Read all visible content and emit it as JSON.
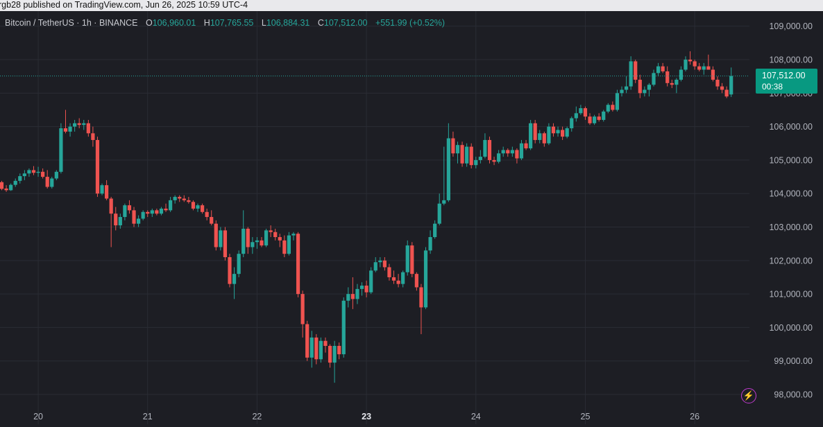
{
  "header": {
    "published_text": "rgb28 published on TradingView.com, Jun 26, 2025 10:59 UTC-4"
  },
  "legend": {
    "symbol_text": "Bitcoin / TetherUS · 1h · BINANCE",
    "open_key": "O",
    "open_val": "106,960.01",
    "high_key": "H",
    "high_val": "107,765.55",
    "low_key": "L",
    "low_val": "106,884.31",
    "close_key": "C",
    "close_val": "107,512.00",
    "change_text": "+551.99 (+0.52%)"
  },
  "price_tag": {
    "price": "107,512.00",
    "countdown": "00:38"
  },
  "icons": {
    "lightning": "lightning-icon"
  },
  "colors": {
    "up": "#26a69a",
    "down": "#ef5350",
    "background": "#1d1e24",
    "grid": "#2a2c34",
    "accent": "#089981"
  },
  "chart_data": {
    "type": "candlestick",
    "symbol": "Bitcoin / TetherUS",
    "interval": "1h",
    "exchange": "BINANCE",
    "y_ticks": [
      98000,
      99000,
      100000,
      101000,
      102000,
      103000,
      104000,
      105000,
      106000,
      107000,
      108000,
      109000
    ],
    "y_tick_labels": [
      "98,000.00",
      "99,000.00",
      "100,000.00",
      "101,000.00",
      "102,000.00",
      "103,000.00",
      "104,000.00",
      "105,000.00",
      "106,000.00",
      "107,000.00",
      "108,000.00",
      "109,000.00"
    ],
    "ylim": [
      97400,
      109450
    ],
    "x_tick_labels": [
      "20",
      "21",
      "22",
      "23",
      "24",
      "25",
      "26"
    ],
    "x_tick_index": [
      8,
      32,
      56,
      80,
      104,
      128,
      152
    ],
    "bold_x_tick": "23",
    "grid": true,
    "current_price": 107512.0,
    "candles": [
      [
        104340,
        104380,
        104100,
        104140
      ],
      [
        104150,
        104250,
        104050,
        104100
      ],
      [
        104100,
        104300,
        104080,
        104260
      ],
      [
        104260,
        104450,
        104200,
        104380
      ],
      [
        104380,
        104600,
        104300,
        104520
      ],
      [
        104520,
        104700,
        104400,
        104600
      ],
      [
        104600,
        104750,
        104500,
        104700
      ],
      [
        104700,
        104820,
        104550,
        104620
      ],
      [
        104620,
        104800,
        104500,
        104650
      ],
      [
        104650,
        104750,
        104450,
        104500
      ],
      [
        104500,
        104700,
        104150,
        104200
      ],
      [
        104200,
        104500,
        104150,
        104450
      ],
      [
        104450,
        104700,
        104400,
        104650
      ],
      [
        104650,
        106100,
        104600,
        105950
      ],
      [
        105950,
        106500,
        105800,
        105850
      ],
      [
        105850,
        106100,
        105700,
        106000
      ],
      [
        106000,
        106200,
        105850,
        106100
      ],
      [
        106100,
        106250,
        105950,
        106050
      ],
      [
        106050,
        106200,
        105900,
        106100
      ],
      [
        106100,
        106200,
        105700,
        105800
      ],
      [
        105800,
        106000,
        105400,
        105600
      ],
      [
        105600,
        105700,
        103900,
        104000
      ],
      [
        104000,
        104300,
        103950,
        104250
      ],
      [
        104250,
        104400,
        103800,
        103850
      ],
      [
        103850,
        103900,
        102400,
        103400
      ],
      [
        103400,
        103600,
        102900,
        103050
      ],
      [
        103050,
        103400,
        102950,
        103300
      ],
      [
        103300,
        103700,
        103200,
        103650
      ],
      [
        103650,
        103800,
        103400,
        103500
      ],
      [
        103500,
        103600,
        103000,
        103100
      ],
      [
        103100,
        103350,
        103000,
        103250
      ],
      [
        103250,
        103500,
        103200,
        103450
      ],
      [
        103450,
        103500,
        103300,
        103400
      ],
      [
        103400,
        103550,
        103300,
        103500
      ],
      [
        103500,
        103550,
        103350,
        103400
      ],
      [
        103400,
        103600,
        103350,
        103550
      ],
      [
        103550,
        103700,
        103450,
        103500
      ],
      [
        103500,
        103900,
        103450,
        103800
      ],
      [
        103800,
        103950,
        103700,
        103900
      ],
      [
        103900,
        103950,
        103750,
        103850
      ],
      [
        103850,
        103950,
        103750,
        103800
      ],
      [
        103800,
        103900,
        103700,
        103750
      ],
      [
        103750,
        103800,
        103500,
        103550
      ],
      [
        103550,
        103700,
        103450,
        103650
      ],
      [
        103650,
        103700,
        103400,
        103450
      ],
      [
        103450,
        103550,
        103200,
        103300
      ],
      [
        103300,
        103500,
        103050,
        103100
      ],
      [
        103100,
        103200,
        102300,
        102400
      ],
      [
        102400,
        103000,
        102300,
        102900
      ],
      [
        102900,
        103000,
        102000,
        102100
      ],
      [
        102100,
        102200,
        101200,
        101300
      ],
      [
        101300,
        101800,
        100850,
        101600
      ],
      [
        101600,
        102300,
        101500,
        102200
      ],
      [
        102200,
        103500,
        102100,
        102950
      ],
      [
        102950,
        103000,
        102200,
        102400
      ],
      [
        102400,
        102700,
        102200,
        102550
      ],
      [
        102550,
        102700,
        102350,
        102600
      ],
      [
        102600,
        102700,
        102400,
        102450
      ],
      [
        102450,
        102950,
        102400,
        102900
      ],
      [
        102900,
        103050,
        102700,
        102850
      ],
      [
        102850,
        102950,
        102600,
        102700
      ],
      [
        102700,
        102800,
        102400,
        102600
      ],
      [
        102600,
        102750,
        102100,
        102200
      ],
      [
        102200,
        102850,
        102150,
        102750
      ],
      [
        102750,
        102850,
        102600,
        102800
      ],
      [
        102800,
        102850,
        100900,
        101000
      ],
      [
        101000,
        101100,
        99700,
        100100
      ],
      [
        100100,
        100200,
        99000,
        99100
      ],
      [
        99100,
        99900,
        98800,
        99700
      ],
      [
        99700,
        99800,
        98900,
        99050
      ],
      [
        99050,
        99700,
        98950,
        99600
      ],
      [
        99600,
        99700,
        99250,
        99450
      ],
      [
        99450,
        99500,
        98800,
        98950
      ],
      [
        98950,
        99600,
        98350,
        99450
      ],
      [
        99450,
        99550,
        99050,
        99200
      ],
      [
        99200,
        100900,
        99100,
        100800
      ],
      [
        100800,
        101200,
        100600,
        101000
      ],
      [
        101000,
        101500,
        100550,
        100850
      ],
      [
        100850,
        101300,
        100700,
        101150
      ],
      [
        101150,
        101350,
        100950,
        101250
      ],
      [
        101250,
        101400,
        100900,
        101050
      ],
      [
        101050,
        101800,
        101000,
        101700
      ],
      [
        101700,
        102100,
        101650,
        101950
      ],
      [
        101950,
        102100,
        101800,
        102000
      ],
      [
        102000,
        102100,
        101700,
        101800
      ],
      [
        101800,
        101900,
        101400,
        101500
      ],
      [
        101500,
        101700,
        101300,
        101400
      ],
      [
        101400,
        101600,
        101200,
        101300
      ],
      [
        101300,
        101700,
        101200,
        101650
      ],
      [
        101650,
        102600,
        101550,
        102450
      ],
      [
        102450,
        102550,
        101500,
        101600
      ],
      [
        101600,
        101650,
        101100,
        101200
      ],
      [
        101200,
        101300,
        99800,
        100600
      ],
      [
        100600,
        102400,
        100550,
        102300
      ],
      [
        102300,
        102900,
        102200,
        102700
      ],
      [
        102700,
        103200,
        102650,
        103100
      ],
      [
        103100,
        104000,
        103050,
        103700
      ],
      [
        103700,
        105400,
        103650,
        103800
      ],
      [
        103800,
        106100,
        103750,
        105650
      ],
      [
        105650,
        105850,
        105100,
        105200
      ],
      [
        105200,
        105550,
        104900,
        105450
      ],
      [
        105450,
        105550,
        104800,
        104900
      ],
      [
        104900,
        105500,
        104800,
        105400
      ],
      [
        105400,
        105500,
        104750,
        104850
      ],
      [
        104850,
        105100,
        104750,
        105000
      ],
      [
        105000,
        105300,
        104900,
        105100
      ],
      [
        105100,
        105800,
        105050,
        105600
      ],
      [
        105600,
        105700,
        104900,
        105000
      ],
      [
        105000,
        105100,
        104850,
        104950
      ],
      [
        104950,
        105300,
        104900,
        105200
      ],
      [
        105200,
        105400,
        105100,
        105300
      ],
      [
        105300,
        105350,
        105100,
        105200
      ],
      [
        105200,
        105400,
        105100,
        105300
      ],
      [
        105300,
        105350,
        104900,
        105050
      ],
      [
        105050,
        105600,
        105000,
        105500
      ],
      [
        105500,
        105600,
        105300,
        105350
      ],
      [
        105350,
        106200,
        105300,
        106100
      ],
      [
        106100,
        106200,
        105500,
        105600
      ],
      [
        105600,
        105900,
        105500,
        105800
      ],
      [
        105800,
        105850,
        105400,
        105500
      ],
      [
        105500,
        106100,
        105450,
        106000
      ],
      [
        106000,
        106100,
        105700,
        105800
      ],
      [
        105800,
        106000,
        105700,
        105900
      ],
      [
        105900,
        106000,
        105600,
        105700
      ],
      [
        105700,
        106000,
        105650,
        105950
      ],
      [
        105950,
        106300,
        105850,
        106250
      ],
      [
        106250,
        106600,
        106150,
        106400
      ],
      [
        106400,
        106650,
        106350,
        106550
      ],
      [
        106550,
        106600,
        106200,
        106300
      ],
      [
        106300,
        106400,
        106050,
        106100
      ],
      [
        106100,
        106350,
        106050,
        106300
      ],
      [
        106300,
        106400,
        106150,
        106200
      ],
      [
        106200,
        106500,
        106150,
        106450
      ],
      [
        106450,
        106700,
        106400,
        106650
      ],
      [
        106650,
        106750,
        106450,
        106500
      ],
      [
        106500,
        107100,
        106450,
        107000
      ],
      [
        107000,
        107200,
        106900,
        107100
      ],
      [
        107100,
        107500,
        107000,
        107200
      ],
      [
        107200,
        108100,
        107100,
        107950
      ],
      [
        107950,
        108000,
        107300,
        107400
      ],
      [
        107400,
        107550,
        106850,
        107000
      ],
      [
        107000,
        107200,
        106900,
        107100
      ],
      [
        107100,
        107300,
        106900,
        107250
      ],
      [
        107250,
        107700,
        107200,
        107600
      ],
      [
        107600,
        107900,
        107500,
        107800
      ],
      [
        107800,
        107900,
        107600,
        107650
      ],
      [
        107650,
        107800,
        107200,
        107300
      ],
      [
        107300,
        107400,
        107150,
        107250
      ],
      [
        107250,
        107450,
        107000,
        107400
      ],
      [
        107400,
        107800,
        107350,
        107700
      ],
      [
        107700,
        108100,
        107650,
        108000
      ],
      [
        108000,
        108250,
        107850,
        107950
      ],
      [
        107950,
        108000,
        107700,
        107800
      ],
      [
        107800,
        107900,
        107650,
        107700
      ],
      [
        107700,
        107900,
        107550,
        107800
      ],
      [
        107800,
        108150,
        107750,
        107700
      ],
      [
        107700,
        107800,
        107350,
        107400
      ],
      [
        107400,
        107500,
        107100,
        107200
      ],
      [
        107200,
        107300,
        107000,
        107100
      ],
      [
        107100,
        107200,
        106850,
        106900
      ],
      [
        106960.01,
        107765.55,
        106884.31,
        107512.0
      ]
    ]
  }
}
